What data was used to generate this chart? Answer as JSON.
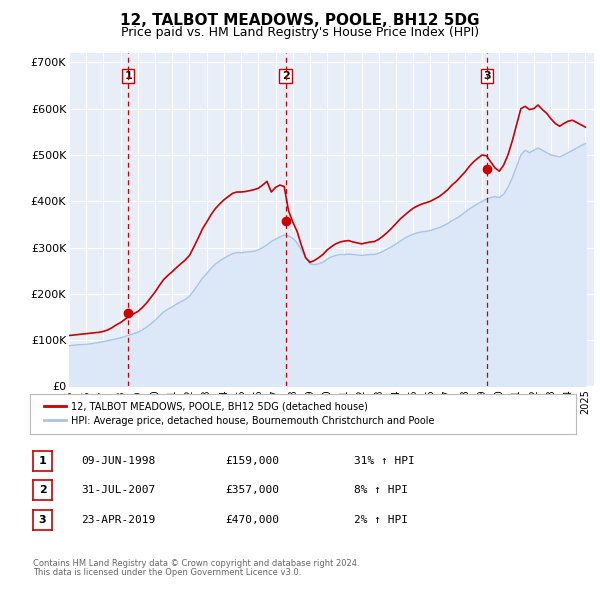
{
  "title": "12, TALBOT MEADOWS, POOLE, BH12 5DG",
  "subtitle": "Price paid vs. HM Land Registry's House Price Index (HPI)",
  "title_fontsize": 11,
  "subtitle_fontsize": 9,
  "ylabel_ticks": [
    "£0",
    "£100K",
    "£200K",
    "£300K",
    "£400K",
    "£500K",
    "£600K",
    "£700K"
  ],
  "ytick_values": [
    0,
    100000,
    200000,
    300000,
    400000,
    500000,
    600000,
    700000
  ],
  "ylim": [
    0,
    720000
  ],
  "xlim_start": 1995.0,
  "xlim_end": 2025.5,
  "background_color": "#ffffff",
  "plot_bg_color": "#e8eef8",
  "grid_color": "#ffffff",
  "hpi_line_color": "#aac4e8",
  "hpi_fill_color": "#dce8f8",
  "price_line_color": "#cc0000",
  "dashed_line_color": "#cc0000",
  "marker_color": "#cc0000",
  "transaction_dates": [
    1998.44,
    2007.58,
    2019.31
  ],
  "transaction_prices": [
    159000,
    357000,
    470000
  ],
  "transaction_labels": [
    "1",
    "2",
    "3"
  ],
  "legend_line1": "12, TALBOT MEADOWS, POOLE, BH12 5DG (detached house)",
  "legend_line2": "HPI: Average price, detached house, Bournemouth Christchurch and Poole",
  "table_data": [
    {
      "num": "1",
      "date": "09-JUN-1998",
      "price": "£159,000",
      "hpi": "31% ↑ HPI"
    },
    {
      "num": "2",
      "date": "31-JUL-2007",
      "price": "£357,000",
      "hpi": "8% ↑ HPI"
    },
    {
      "num": "3",
      "date": "23-APR-2019",
      "price": "£470,000",
      "hpi": "2% ↑ HPI"
    }
  ],
  "footer_line1": "Contains HM Land Registry data © Crown copyright and database right 2024.",
  "footer_line2": "This data is licensed under the Open Government Licence v3.0.",
  "hpi_data_x": [
    1995.0,
    1995.25,
    1995.5,
    1995.75,
    1996.0,
    1996.25,
    1996.5,
    1996.75,
    1997.0,
    1997.25,
    1997.5,
    1997.75,
    1998.0,
    1998.25,
    1998.5,
    1998.75,
    1999.0,
    1999.25,
    1999.5,
    1999.75,
    2000.0,
    2000.25,
    2000.5,
    2000.75,
    2001.0,
    2001.25,
    2001.5,
    2001.75,
    2002.0,
    2002.25,
    2002.5,
    2002.75,
    2003.0,
    2003.25,
    2003.5,
    2003.75,
    2004.0,
    2004.25,
    2004.5,
    2004.75,
    2005.0,
    2005.25,
    2005.5,
    2005.75,
    2006.0,
    2006.25,
    2006.5,
    2006.75,
    2007.0,
    2007.25,
    2007.5,
    2007.75,
    2008.0,
    2008.25,
    2008.5,
    2008.75,
    2009.0,
    2009.25,
    2009.5,
    2009.75,
    2010.0,
    2010.25,
    2010.5,
    2010.75,
    2011.0,
    2011.25,
    2011.5,
    2011.75,
    2012.0,
    2012.25,
    2012.5,
    2012.75,
    2013.0,
    2013.25,
    2013.5,
    2013.75,
    2014.0,
    2014.25,
    2014.5,
    2014.75,
    2015.0,
    2015.25,
    2015.5,
    2015.75,
    2016.0,
    2016.25,
    2016.5,
    2016.75,
    2017.0,
    2017.25,
    2017.5,
    2017.75,
    2018.0,
    2018.25,
    2018.5,
    2018.75,
    2019.0,
    2019.25,
    2019.5,
    2019.75,
    2020.0,
    2020.25,
    2020.5,
    2020.75,
    2021.0,
    2021.25,
    2021.5,
    2021.75,
    2022.0,
    2022.25,
    2022.5,
    2022.75,
    2023.0,
    2023.25,
    2023.5,
    2023.75,
    2024.0,
    2024.25,
    2024.5,
    2024.75,
    2025.0
  ],
  "hpi_data_y": [
    88000,
    89000,
    90000,
    90500,
    91000,
    92000,
    93500,
    95000,
    97000,
    99000,
    101000,
    103000,
    105000,
    108000,
    111000,
    114000,
    117000,
    122000,
    128000,
    135000,
    143000,
    152000,
    161000,
    167000,
    172000,
    178000,
    183000,
    188000,
    195000,
    207000,
    220000,
    234000,
    244000,
    255000,
    264000,
    271000,
    277000,
    282000,
    287000,
    289000,
    289000,
    290000,
    291000,
    292000,
    295000,
    300000,
    306000,
    313000,
    318000,
    323000,
    327000,
    325000,
    320000,
    310000,
    295000,
    278000,
    265000,
    263000,
    265000,
    268000,
    275000,
    280000,
    283000,
    285000,
    285000,
    286000,
    285000,
    284000,
    283000,
    284000,
    285000,
    285000,
    288000,
    292000,
    297000,
    302000,
    308000,
    314000,
    320000,
    325000,
    329000,
    332000,
    334000,
    335000,
    337000,
    340000,
    343000,
    347000,
    352000,
    358000,
    363000,
    369000,
    376000,
    383000,
    389000,
    395000,
    400000,
    405000,
    408000,
    410000,
    408000,
    415000,
    430000,
    450000,
    475000,
    500000,
    510000,
    505000,
    510000,
    515000,
    510000,
    505000,
    500000,
    498000,
    496000,
    500000,
    505000,
    510000,
    515000,
    520000,
    525000
  ],
  "price_data_x": [
    1995.0,
    1995.25,
    1995.5,
    1995.75,
    1996.0,
    1996.25,
    1996.5,
    1996.75,
    1997.0,
    1997.25,
    1997.5,
    1997.75,
    1998.0,
    1998.25,
    1998.5,
    1998.75,
    1999.0,
    1999.25,
    1999.5,
    1999.75,
    2000.0,
    2000.25,
    2000.5,
    2000.75,
    2001.0,
    2001.25,
    2001.5,
    2001.75,
    2002.0,
    2002.25,
    2002.5,
    2002.75,
    2003.0,
    2003.25,
    2003.5,
    2003.75,
    2004.0,
    2004.25,
    2004.5,
    2004.75,
    2005.0,
    2005.25,
    2005.5,
    2005.75,
    2006.0,
    2006.25,
    2006.5,
    2006.75,
    2007.0,
    2007.25,
    2007.5,
    2007.75,
    2008.0,
    2008.25,
    2008.5,
    2008.75,
    2009.0,
    2009.25,
    2009.5,
    2009.75,
    2010.0,
    2010.25,
    2010.5,
    2010.75,
    2011.0,
    2011.25,
    2011.5,
    2011.75,
    2012.0,
    2012.25,
    2012.5,
    2012.75,
    2013.0,
    2013.25,
    2013.5,
    2013.75,
    2014.0,
    2014.25,
    2014.5,
    2014.75,
    2015.0,
    2015.25,
    2015.5,
    2015.75,
    2016.0,
    2016.25,
    2016.5,
    2016.75,
    2017.0,
    2017.25,
    2017.5,
    2017.75,
    2018.0,
    2018.25,
    2018.5,
    2018.75,
    2019.0,
    2019.25,
    2019.5,
    2019.75,
    2020.0,
    2020.25,
    2020.5,
    2020.75,
    2021.0,
    2021.25,
    2021.5,
    2021.75,
    2022.0,
    2022.25,
    2022.5,
    2022.75,
    2023.0,
    2023.25,
    2023.5,
    2023.75,
    2024.0,
    2024.25,
    2024.5,
    2024.75,
    2025.0
  ],
  "price_data_y": [
    110000,
    111000,
    112000,
    113000,
    114000,
    115000,
    116000,
    117000,
    119000,
    122000,
    127000,
    133000,
    138000,
    145000,
    152000,
    157000,
    162000,
    170000,
    180000,
    192000,
    204000,
    218000,
    231000,
    240000,
    248000,
    257000,
    265000,
    273000,
    283000,
    301000,
    320000,
    340000,
    355000,
    371000,
    384000,
    394000,
    403000,
    410000,
    417000,
    420000,
    420000,
    421000,
    423000,
    425000,
    428000,
    435000,
    443000,
    420000,
    430000,
    435000,
    432000,
    380000,
    355000,
    335000,
    305000,
    278000,
    268000,
    272000,
    278000,
    285000,
    295000,
    302000,
    308000,
    312000,
    314000,
    315000,
    312000,
    310000,
    308000,
    310000,
    312000,
    313000,
    318000,
    325000,
    333000,
    342000,
    352000,
    362000,
    370000,
    378000,
    385000,
    390000,
    394000,
    397000,
    400000,
    405000,
    410000,
    417000,
    425000,
    435000,
    443000,
    453000,
    463000,
    475000,
    485000,
    493000,
    500000,
    498000,
    485000,
    472000,
    465000,
    478000,
    500000,
    530000,
    565000,
    600000,
    605000,
    598000,
    600000,
    608000,
    598000,
    590000,
    578000,
    568000,
    562000,
    568000,
    573000,
    575000,
    570000,
    565000,
    560000
  ]
}
